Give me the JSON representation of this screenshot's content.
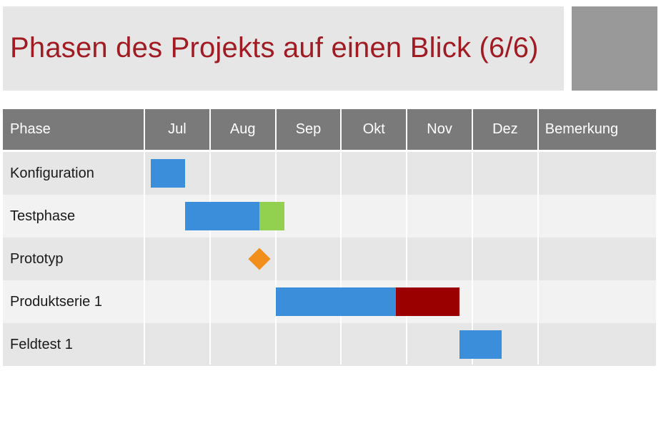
{
  "title": "Phasen des Projekts auf einen Blick (6/6)",
  "chart_data": {
    "type": "gantt",
    "columns": [
      "Phase",
      "Jul",
      "Aug",
      "Sep",
      "Okt",
      "Nov",
      "Dez",
      "Bemerkung"
    ],
    "months": [
      "Jul",
      "Aug",
      "Sep",
      "Okt",
      "Nov",
      "Dez"
    ],
    "colors": {
      "plan": "#3b8ed9",
      "buffer": "#92d050",
      "extension": "#9b0000",
      "milestone": "#f28e1c"
    },
    "rows": [
      {
        "phase": "Konfiguration",
        "segments": [
          {
            "start": 0.1,
            "end": 0.62,
            "color": "plan"
          }
        ]
      },
      {
        "phase": "Testphase",
        "segments": [
          {
            "start": 0.62,
            "end": 1.75,
            "color": "plan"
          },
          {
            "start": 1.75,
            "end": 2.13,
            "color": "buffer"
          }
        ]
      },
      {
        "phase": "Prototyp",
        "milestone": 1.75
      },
      {
        "phase": "Produktserie 1",
        "segments": [
          {
            "start": 2.0,
            "end": 3.83,
            "color": "plan"
          },
          {
            "start": 3.83,
            "end": 4.8,
            "color": "extension"
          }
        ]
      },
      {
        "phase": "Feldtest 1",
        "segments": [
          {
            "start": 4.8,
            "end": 5.45,
            "color": "plan"
          }
        ]
      }
    ]
  }
}
